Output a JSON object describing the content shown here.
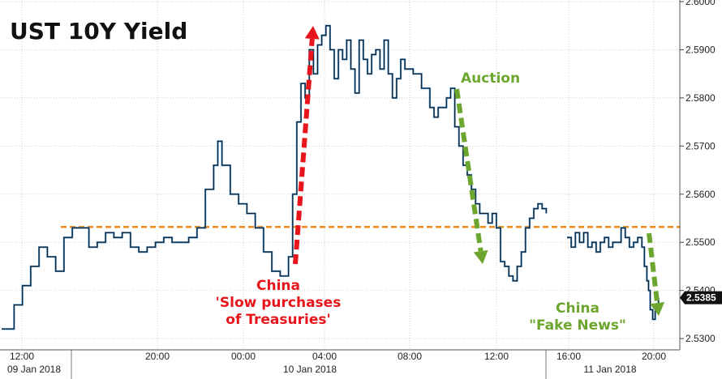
{
  "chart_data": {
    "type": "line",
    "title": "UST 10Y Yield",
    "ylim": [
      2.528,
      2.6
    ],
    "yticks": [
      "2.5300",
      "2.5400",
      "2.5500",
      "2.5600",
      "2.5700",
      "2.5800",
      "2.5900",
      "2.6000"
    ],
    "y_axis_position": "right",
    "grid": true,
    "x_time_ticks": [
      "12:00",
      "20:00",
      "00:00",
      "04:00",
      "08:00",
      "12:00",
      "16:00",
      "20:00"
    ],
    "x_date_labels": [
      "09 Jan 2018",
      "10 Jan 2018",
      "11 Jan 2018"
    ],
    "last_value_label": "2.5385",
    "reference_line": {
      "value": 2.5532,
      "color": "#f08a1c",
      "style": "dashed"
    },
    "series_color": "#1a1a1a",
    "series_highlight_color": "#3b8fd6",
    "series": [
      {
        "values": [
          [
            0.0,
            2.532
          ],
          [
            1.5,
            2.537
          ],
          [
            2.5,
            2.541
          ],
          [
            3.5,
            2.545
          ],
          [
            4.5,
            2.549
          ],
          [
            5.5,
            2.547
          ],
          [
            6.5,
            2.544
          ],
          [
            7.5,
            2.551
          ],
          [
            8.5,
            2.553
          ],
          [
            9.5,
            2.553
          ],
          [
            10.5,
            2.549
          ],
          [
            11.5,
            2.55
          ],
          [
            12.5,
            2.552
          ],
          [
            13.5,
            2.551
          ],
          [
            14.5,
            2.552
          ],
          [
            15.5,
            2.549
          ],
          [
            16.5,
            2.548
          ],
          [
            17.5,
            2.549
          ],
          [
            18.5,
            2.55
          ],
          [
            19.5,
            2.551
          ],
          [
            20.5,
            2.55
          ],
          [
            21.5,
            2.55
          ],
          [
            22.5,
            2.551
          ],
          [
            23.5,
            2.553
          ],
          [
            24.5,
            2.561
          ],
          [
            25.5,
            2.566
          ],
          [
            26.0,
            2.571
          ],
          [
            26.5,
            2.566
          ],
          [
            27.5,
            2.56
          ],
          [
            28.5,
            2.558
          ],
          [
            29.5,
            2.556
          ],
          [
            30.5,
            2.553
          ],
          [
            31.5,
            2.548
          ],
          [
            32.5,
            2.544
          ],
          [
            33.5,
            2.543
          ],
          [
            34.5,
            2.547
          ],
          [
            35.0,
            2.56
          ],
          [
            35.5,
            2.575
          ],
          [
            36.0,
            2.583
          ],
          [
            36.5,
            2.58
          ],
          [
            37.0,
            2.59
          ],
          [
            37.5,
            2.585
          ],
          [
            38.0,
            2.591
          ],
          [
            38.5,
            2.593
          ],
          [
            39.0,
            2.595
          ],
          [
            39.5,
            2.59
          ],
          [
            40.0,
            2.584
          ],
          [
            40.5,
            2.59
          ],
          [
            41.0,
            2.588
          ],
          [
            41.5,
            2.592
          ],
          [
            42.0,
            2.586
          ],
          [
            42.5,
            2.581
          ],
          [
            43.0,
            2.592
          ],
          [
            43.5,
            2.588
          ],
          [
            44.0,
            2.585
          ],
          [
            44.5,
            2.589
          ],
          [
            45.0,
            2.59
          ],
          [
            45.5,
            2.586
          ],
          [
            46.0,
            2.592
          ],
          [
            46.5,
            2.585
          ],
          [
            47.0,
            2.58
          ],
          [
            47.5,
            2.584
          ],
          [
            48.0,
            2.588
          ],
          [
            48.5,
            2.586
          ],
          [
            49.5,
            2.585
          ],
          [
            50.5,
            2.582
          ],
          [
            51.5,
            2.578
          ],
          [
            52.0,
            2.576
          ],
          [
            52.5,
            2.578
          ],
          [
            53.0,
            2.578
          ],
          [
            53.5,
            2.58
          ],
          [
            54.0,
            2.582
          ],
          [
            54.5,
            2.574
          ],
          [
            55.0,
            2.57
          ],
          [
            55.5,
            2.566
          ],
          [
            56.0,
            2.564
          ],
          [
            56.5,
            2.561
          ],
          [
            57.0,
            2.558
          ],
          [
            57.5,
            2.556
          ],
          [
            58.5,
            2.554
          ],
          [
            59.0,
            2.556
          ],
          [
            59.5,
            2.553
          ],
          [
            60.0,
            2.546
          ],
          [
            60.5,
            2.545
          ],
          [
            61.0,
            2.543
          ],
          [
            61.5,
            2.542
          ],
          [
            62.0,
            2.545
          ],
          [
            62.5,
            2.548
          ],
          [
            63.0,
            2.553
          ],
          [
            63.5,
            2.555
          ],
          [
            64.0,
            2.557
          ],
          [
            64.5,
            2.558
          ],
          [
            65.0,
            2.557
          ],
          [
            65.5,
            2.556
          ],
          null,
          [
            68.0,
            2.551
          ],
          [
            68.5,
            2.549
          ],
          [
            69.0,
            2.552
          ],
          [
            69.5,
            2.55
          ],
          [
            70.0,
            2.552
          ],
          [
            70.5,
            2.549
          ],
          [
            71.0,
            2.55
          ],
          [
            71.5,
            2.548
          ],
          [
            72.0,
            2.55
          ],
          [
            72.5,
            2.551
          ],
          [
            73.0,
            2.549
          ],
          [
            73.5,
            2.55
          ],
          [
            74.0,
            2.55
          ],
          [
            74.5,
            2.553
          ],
          [
            75.0,
            2.551
          ],
          [
            75.5,
            2.549
          ],
          [
            76.0,
            2.55
          ],
          [
            76.5,
            2.551
          ],
          [
            77.0,
            2.549
          ],
          [
            77.3,
            2.545
          ],
          [
            77.6,
            2.542
          ],
          [
            77.8,
            2.54
          ],
          [
            78.0,
            2.536
          ],
          [
            78.3,
            2.534
          ],
          [
            78.6,
            2.537
          ],
          [
            79.0,
            2.5385
          ]
        ]
      }
    ],
    "annotations": [
      {
        "lines": [
          "China",
          "'Slow purchases",
          "of Treasuries'"
        ],
        "color": "#e8141b"
      },
      {
        "lines": [
          "Auction"
        ],
        "color": "#6ca62e"
      },
      {
        "lines": [
          "China",
          "\"Fake News\""
        ],
        "color": "#6ca62e"
      }
    ]
  }
}
